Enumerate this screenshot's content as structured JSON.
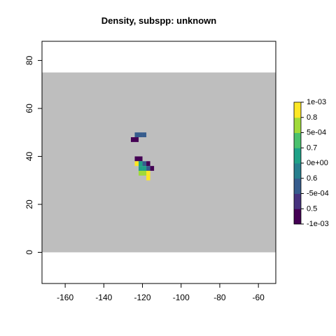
{
  "chart_data": {
    "type": "heatmap",
    "title": "Density, subspp: unknown",
    "xlabel": "",
    "ylabel": "",
    "xlim": [
      -172,
      -51
    ],
    "ylim": [
      -13,
      88
    ],
    "x_ticks": [
      -160,
      -140,
      -120,
      -100,
      -80,
      -60
    ],
    "y_ticks": [
      0,
      20,
      40,
      60,
      80
    ],
    "background_region": {
      "x": [
        -172,
        -51
      ],
      "y": [
        0,
        75
      ],
      "color": "#bebebe"
    },
    "cell_size": 2,
    "colorbar": {
      "range": [
        -0.001,
        0.001
      ],
      "labels_outer": [
        "1e-03",
        "5e-04",
        "0e+00",
        "-5e-04",
        "-1e-03"
      ],
      "labels_outer_values": [
        0.001,
        0.0005,
        0,
        -0.0005,
        -0.001
      ],
      "labels_inner": [
        "0.8",
        "0.7",
        "0.6",
        "0.5"
      ],
      "labels_inner_values": [
        0.00075,
        0.00025,
        -0.00025,
        -0.00075
      ],
      "colors": [
        "#440154",
        "#46327e",
        "#365c8d",
        "#277f8e",
        "#1fa187",
        "#4ac16d",
        "#a0da39",
        "#fde725"
      ]
    },
    "cells": [
      {
        "x": -123,
        "y": 49,
        "v": -0.0004
      },
      {
        "x": -121,
        "y": 49,
        "v": -0.0004
      },
      {
        "x": -119,
        "y": 49,
        "v": -0.0003
      },
      {
        "x": -125,
        "y": 47,
        "v": -0.0009
      },
      {
        "x": -123,
        "y": 47,
        "v": -0.0009
      },
      {
        "x": -121,
        "y": 39,
        "v": -0.0008
      },
      {
        "x": -123,
        "y": 39,
        "v": -0.0008
      },
      {
        "x": -123,
        "y": 37,
        "v": 0.001
      },
      {
        "x": -121,
        "y": 37,
        "v": 0.0001
      },
      {
        "x": -119,
        "y": 37,
        "v": -0.0004
      },
      {
        "x": -117,
        "y": 37,
        "v": -0.0009
      },
      {
        "x": -121,
        "y": 35,
        "v": 0.0001
      },
      {
        "x": -119,
        "y": 35,
        "v": 0.0002
      },
      {
        "x": -117,
        "y": 35,
        "v": -0.0004
      },
      {
        "x": -115,
        "y": 35,
        "v": -0.0009
      },
      {
        "x": -121,
        "y": 33,
        "v": 0.0005
      },
      {
        "x": -119,
        "y": 33,
        "v": 0.0007
      },
      {
        "x": -117,
        "y": 33,
        "v": 0.0008
      },
      {
        "x": -117,
        "y": 31,
        "v": 0.0009
      }
    ]
  }
}
